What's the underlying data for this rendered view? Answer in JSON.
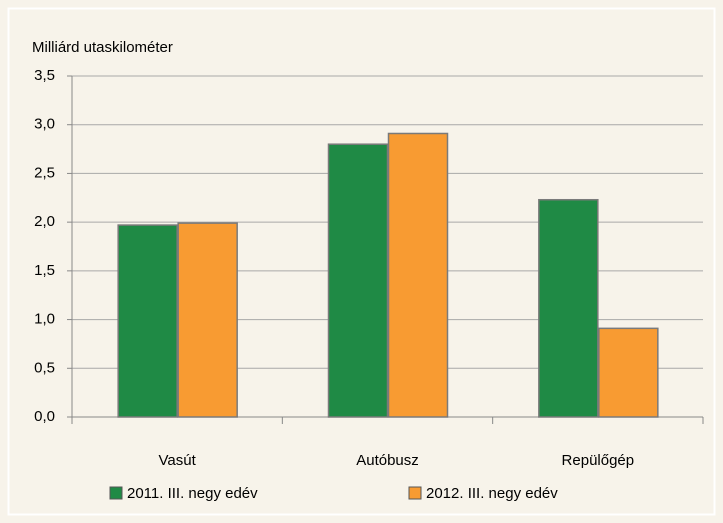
{
  "chart_data": {
    "type": "bar",
    "ylabel": "Milliárd utaskilométer",
    "categories": [
      "Vasút",
      "Autóbusz",
      "Repülőgép"
    ],
    "series": [
      {
        "name": "2011. III. negy edév",
        "color": "#1f8a45",
        "values": [
          1.97,
          2.8,
          2.23
        ]
      },
      {
        "name": "2012. III. negy edév",
        "color": "#f89b32",
        "values": [
          1.99,
          2.91,
          0.91
        ]
      }
    ],
    "ylim": [
      0,
      3.5
    ],
    "yticks": [
      {
        "value": 0,
        "label": "0,0"
      },
      {
        "value": 0.5,
        "label": "0,5"
      },
      {
        "value": 1,
        "label": "1,0"
      },
      {
        "value": 1.5,
        "label": "1,5"
      },
      {
        "value": 2,
        "label": "2,0"
      },
      {
        "value": 2.5,
        "label": "2,5"
      },
      {
        "value": 3,
        "label": "3,0"
      },
      {
        "value": 3.5,
        "label": "3,5"
      }
    ],
    "grid": true
  }
}
